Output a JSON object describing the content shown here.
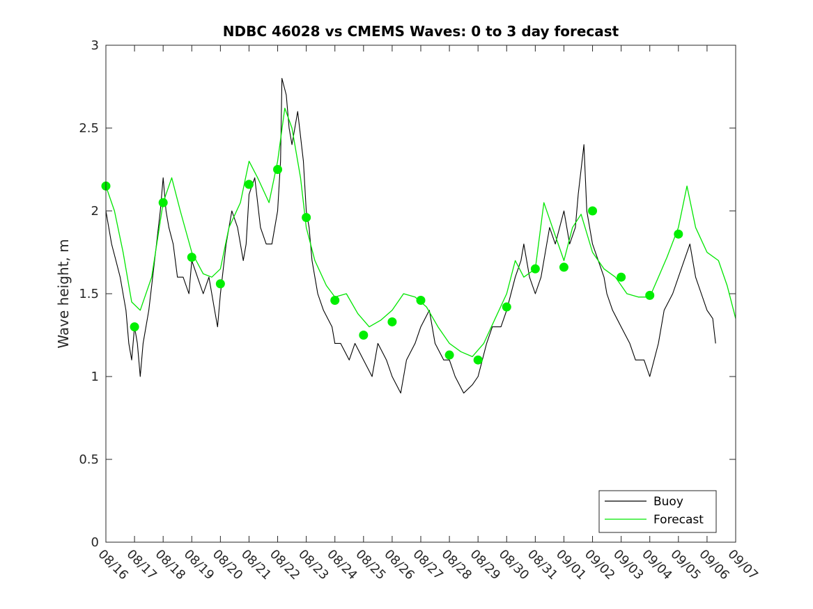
{
  "chart_data": {
    "type": "line",
    "title": "NDBC 46028 vs CMEMS Waves: 0 to 3 day forecast",
    "xlabel": "",
    "ylabel": "Wave height, m",
    "xlim": [
      0,
      22
    ],
    "ylim": [
      0,
      3
    ],
    "yticks": [
      0,
      0.5,
      1,
      1.5,
      2,
      2.5,
      3
    ],
    "ytick_labels": [
      "0",
      "0.5",
      "1",
      "1.5",
      "2",
      "2.5",
      "3"
    ],
    "xtick_labels": [
      "08/16",
      "08/17",
      "08/18",
      "08/19",
      "08/20",
      "08/21",
      "08/22",
      "08/23",
      "08/24",
      "08/25",
      "08/26",
      "08/27",
      "08/28",
      "08/29",
      "08/30",
      "08/31",
      "09/01",
      "09/02",
      "09/03",
      "09/04",
      "09/05",
      "09/06",
      "09/07"
    ],
    "legend": {
      "placement": "bottom-right",
      "entries": [
        {
          "name": "Buoy",
          "color": "#000000"
        },
        {
          "name": "Forecast",
          "color": "#00e600"
        }
      ]
    },
    "colors": {
      "buoy": "#000000",
      "forecast": "#00e600",
      "marker": "#00ee00"
    },
    "forecast_markers": {
      "x": [
        0,
        1,
        2,
        3,
        4,
        5,
        6,
        7,
        8,
        9,
        10,
        11,
        12,
        13,
        14,
        15,
        16,
        17,
        18,
        19,
        20
      ],
      "y": [
        2.15,
        1.3,
        2.05,
        1.72,
        1.56,
        2.16,
        2.25,
        1.96,
        1.46,
        1.25,
        1.33,
        1.46,
        1.13,
        1.1,
        1.42,
        1.65,
        1.66,
        2.0,
        1.6,
        1.49,
        1.86
      ]
    },
    "series": [
      {
        "name": "Buoy",
        "x": [
          0,
          0.1,
          0.2,
          0.35,
          0.5,
          0.7,
          0.8,
          0.9,
          1.0,
          1.1,
          1.2,
          1.3,
          1.5,
          1.7,
          1.9,
          2.0,
          2.1,
          2.2,
          2.35,
          2.5,
          2.7,
          2.9,
          3.0,
          3.2,
          3.4,
          3.6,
          3.8,
          3.9,
          4.0,
          4.2,
          4.4,
          4.6,
          4.8,
          4.9,
          5.0,
          5.2,
          5.4,
          5.6,
          5.8,
          6.0,
          6.1,
          6.15,
          6.3,
          6.4,
          6.5,
          6.7,
          6.9,
          7.0,
          7.1,
          7.2,
          7.4,
          7.6,
          7.9,
          8.0,
          8.2,
          8.5,
          8.7,
          9.0,
          9.3,
          9.5,
          9.8,
          10.0,
          10.3,
          10.5,
          10.8,
          11.0,
          11.3,
          11.5,
          11.8,
          12.0,
          12.2,
          12.5,
          12.8,
          13.0,
          13.3,
          13.5,
          13.8,
          14.0,
          14.3,
          14.5,
          14.6,
          14.8,
          15.0,
          15.2,
          15.5,
          15.7,
          16.0,
          16.2,
          16.4,
          16.5,
          16.7,
          16.8,
          17.0,
          17.2,
          17.4,
          17.5,
          17.7,
          18.0,
          18.3,
          18.5,
          18.8,
          19.0,
          19.3,
          19.5,
          19.8,
          20.0,
          20.2,
          20.4,
          20.6,
          20.8,
          21.0,
          21.2,
          21.3
        ],
        "y": [
          2.0,
          1.9,
          1.8,
          1.7,
          1.6,
          1.4,
          1.2,
          1.1,
          1.3,
          1.2,
          1.0,
          1.2,
          1.4,
          1.7,
          2.0,
          2.2,
          2.0,
          1.9,
          1.8,
          1.6,
          1.6,
          1.5,
          1.7,
          1.6,
          1.5,
          1.6,
          1.4,
          1.3,
          1.5,
          1.8,
          2.0,
          1.9,
          1.7,
          1.8,
          2.1,
          2.2,
          1.9,
          1.8,
          1.8,
          2.0,
          2.3,
          2.8,
          2.7,
          2.5,
          2.4,
          2.6,
          2.3,
          2.0,
          1.9,
          1.7,
          1.5,
          1.4,
          1.3,
          1.2,
          1.2,
          1.1,
          1.2,
          1.1,
          1.0,
          1.2,
          1.1,
          1.0,
          0.9,
          1.1,
          1.2,
          1.3,
          1.4,
          1.2,
          1.1,
          1.1,
          1.0,
          0.9,
          0.95,
          1.0,
          1.2,
          1.3,
          1.3,
          1.4,
          1.6,
          1.7,
          1.8,
          1.6,
          1.5,
          1.6,
          1.9,
          1.8,
          2.0,
          1.8,
          1.9,
          2.1,
          2.4,
          2.0,
          1.8,
          1.7,
          1.6,
          1.5,
          1.4,
          1.3,
          1.2,
          1.1,
          1.1,
          1.0,
          1.2,
          1.4,
          1.5,
          1.6,
          1.7,
          1.8,
          1.6,
          1.5,
          1.4,
          1.35,
          1.2
        ]
      },
      {
        "name": "Forecast",
        "x": [
          0,
          0.3,
          0.6,
          0.9,
          1.2,
          1.6,
          2.0,
          2.3,
          2.6,
          3.0,
          3.4,
          3.7,
          4.0,
          4.3,
          4.7,
          5.0,
          5.3,
          5.7,
          6.0,
          6.25,
          6.5,
          6.8,
          7.0,
          7.3,
          7.7,
          8.0,
          8.4,
          8.8,
          9.2,
          9.6,
          10.0,
          10.4,
          10.8,
          11.2,
          11.6,
          12.0,
          12.4,
          12.8,
          13.2,
          13.6,
          14.0,
          14.3,
          14.6,
          15.0,
          15.3,
          15.6,
          16.0,
          16.3,
          16.6,
          17.0,
          17.4,
          17.8,
          18.2,
          18.6,
          19.0,
          19.3,
          19.6,
          20.0,
          20.3,
          20.6,
          21.0,
          21.4,
          21.7,
          22.0
        ],
        "y": [
          2.15,
          2.0,
          1.75,
          1.45,
          1.4,
          1.6,
          2.05,
          2.2,
          2.0,
          1.75,
          1.62,
          1.6,
          1.65,
          1.9,
          2.05,
          2.3,
          2.2,
          2.05,
          2.3,
          2.62,
          2.5,
          2.2,
          1.9,
          1.7,
          1.55,
          1.48,
          1.5,
          1.38,
          1.3,
          1.34,
          1.4,
          1.5,
          1.48,
          1.42,
          1.3,
          1.2,
          1.15,
          1.12,
          1.2,
          1.35,
          1.5,
          1.7,
          1.6,
          1.65,
          2.05,
          1.9,
          1.7,
          1.9,
          1.98,
          1.75,
          1.65,
          1.6,
          1.5,
          1.48,
          1.48,
          1.6,
          1.72,
          1.9,
          2.15,
          1.9,
          1.75,
          1.7,
          1.55,
          1.35
        ]
      }
    ]
  }
}
